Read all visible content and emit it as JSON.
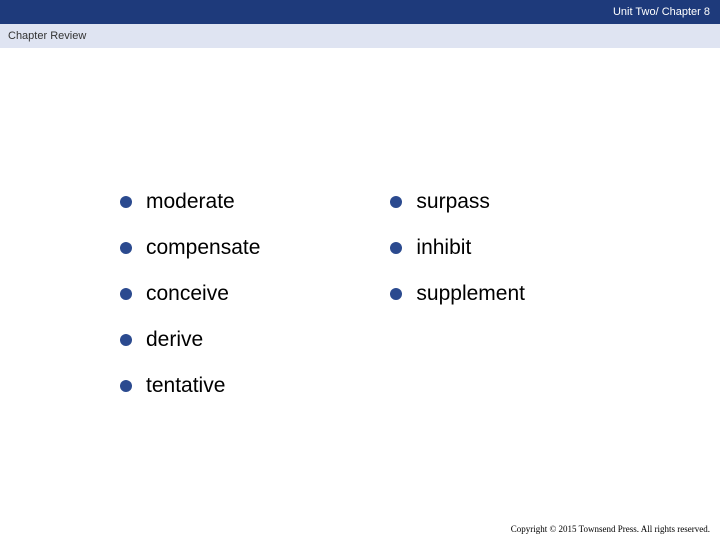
{
  "header": {
    "title": "Unit Two/ Chapter 8",
    "bg_color": "#1e3a7b",
    "text_color": "#ffffff",
    "fontsize": 11
  },
  "subheader": {
    "title": "Chapter Review",
    "bg_color": "#dfe4f2",
    "text_color": "#333333",
    "fontsize": 11
  },
  "bullet_color": "#2b4a8f",
  "word_fontsize": 21,
  "columns": {
    "left": [
      {
        "word": "moderate"
      },
      {
        "word": "compensate"
      },
      {
        "word": "conceive"
      },
      {
        "word": "derive"
      },
      {
        "word": "tentative"
      }
    ],
    "right": [
      {
        "word": "surpass"
      },
      {
        "word": "inhibit"
      },
      {
        "word": "supplement"
      }
    ]
  },
  "footer": {
    "text": "Copyright © 2015 Townsend Press. All rights reserved.",
    "fontsize": 9
  }
}
